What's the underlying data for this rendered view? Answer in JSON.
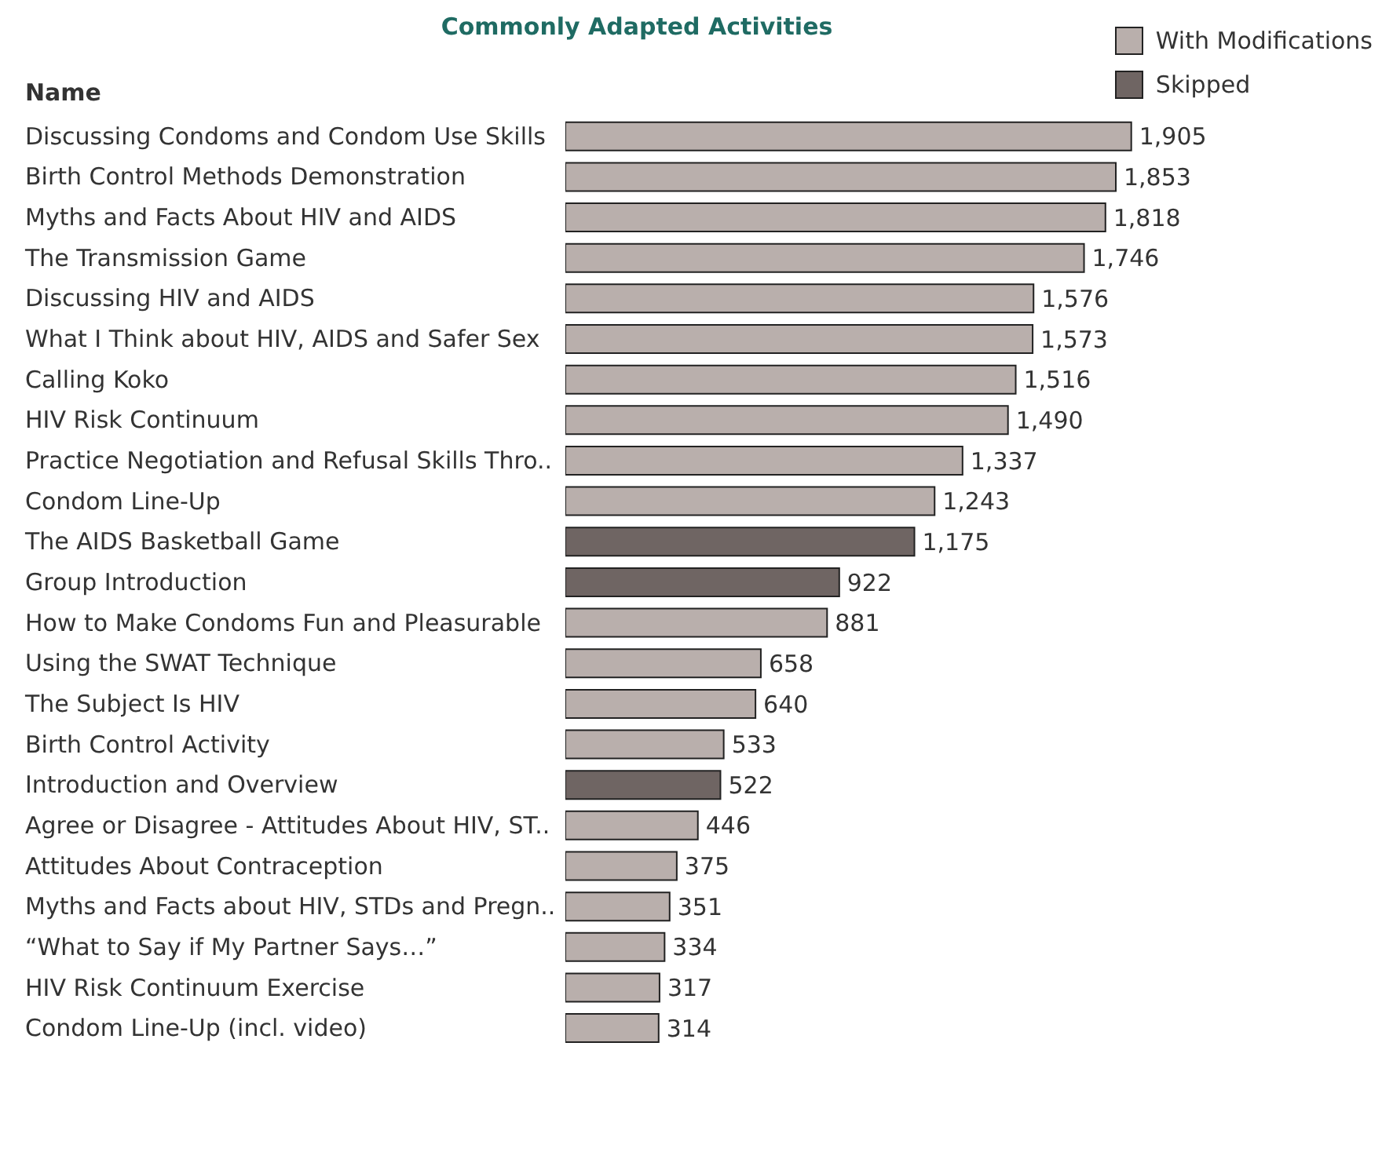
{
  "chart_data": {
    "type": "bar",
    "orientation": "horizontal",
    "stacked": true,
    "title": "Commonly Adapted Activities",
    "ylabel": "Name",
    "categories": [
      "Discussing Condoms and Condom Use Skills",
      "Birth Control Methods Demonstration",
      "Myths and Facts About HIV and AIDS",
      "The Transmission Game",
      "Discussing HIV and AIDS",
      "What I Think about HIV, AIDS and Safer Sex",
      "Calling Koko",
      "HIV Risk Continuum",
      "Practice Negotiation and Refusal Skills Thro..",
      "Condom Line-Up",
      "The AIDS Basketball Game",
      "Group Introduction",
      "How to Make Condoms Fun and Pleasurable",
      "Using the SWAT Technique",
      "The Subject Is HIV",
      "Birth Control Activity",
      "Introduction and Overview",
      "Agree or Disagree - Attitudes About HIV, ST..",
      "Attitudes About Contraception",
      "Myths and Facts about HIV, STDs and Pregn..",
      "“What to Say if My Partner Says…”",
      "HIV Risk Continuum Exercise",
      "Condom Line-Up (incl. video)"
    ],
    "series": [
      {
        "name": "With Modifications",
        "color": "#b9afac",
        "values": [
          1905,
          1853,
          1818,
          1746,
          1576,
          1573,
          1516,
          1490,
          1337,
          1243,
          null,
          null,
          881,
          658,
          640,
          533,
          null,
          446,
          375,
          351,
          334,
          317,
          314
        ],
        "value_labels": [
          "1,905",
          "1,853",
          "1,818",
          "1,746",
          "1,576",
          "1,573",
          "1,516",
          "1,490",
          "1,337",
          "1,243",
          null,
          null,
          "881",
          "658",
          "640",
          "533",
          null,
          "446",
          "375",
          "351",
          "334",
          "317",
          "314"
        ]
      },
      {
        "name": "Skipped",
        "color": "#6f6563",
        "values": [
          null,
          null,
          null,
          null,
          null,
          null,
          null,
          null,
          null,
          null,
          1175,
          922,
          null,
          null,
          null,
          null,
          522,
          null,
          null,
          null,
          null,
          null,
          null
        ],
        "value_labels": [
          null,
          null,
          null,
          null,
          null,
          null,
          null,
          null,
          null,
          null,
          "1,175",
          "922",
          null,
          null,
          null,
          null,
          "522",
          null,
          null,
          null,
          null,
          null,
          null
        ]
      }
    ],
    "legend": "top right"
  }
}
